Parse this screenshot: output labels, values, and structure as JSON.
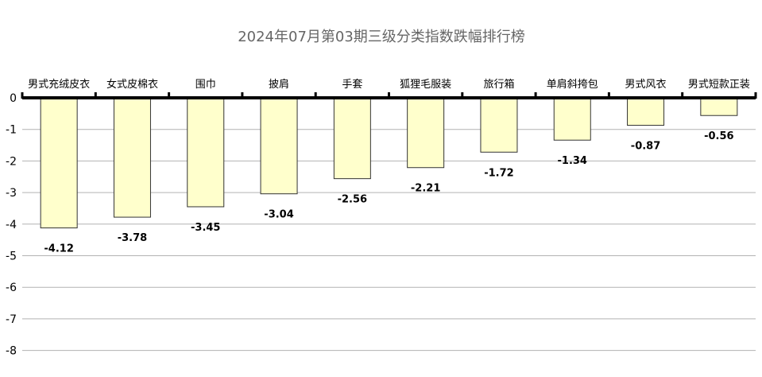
{
  "chart_data": {
    "type": "bar",
    "title": "2024年07月第03期三级分类指数跌幅排行榜",
    "categories": [
      "男式充绒皮衣",
      "女式皮棉衣",
      "围巾",
      "披肩",
      "手套",
      "狐狸毛服装",
      "旅行箱",
      "单肩斜挎包",
      "男式风衣",
      "男式短款正装"
    ],
    "values": [
      -4.12,
      -3.78,
      -3.45,
      -3.04,
      -2.56,
      -2.21,
      -1.72,
      -1.34,
      -0.87,
      -0.56
    ],
    "data_labels": [
      "-4.12",
      "-3.78",
      "-3.45",
      "-3.04",
      "-2.56",
      "-2.21",
      "-1.72",
      "-1.34",
      "-0.87",
      "-0.56"
    ],
    "y_ticks": [
      0,
      -1,
      -2,
      -3,
      -4,
      -5,
      -6,
      -7,
      -8
    ],
    "ylim": [
      -8,
      0
    ],
    "xlabel": "",
    "ylabel": "",
    "grid": true,
    "legend": "none",
    "bar_color": "#ffffcc",
    "bar_stroke": "#333333",
    "grid_color": "#b3b3b3",
    "axis_color": "#000000",
    "title_color": "#666666"
  }
}
